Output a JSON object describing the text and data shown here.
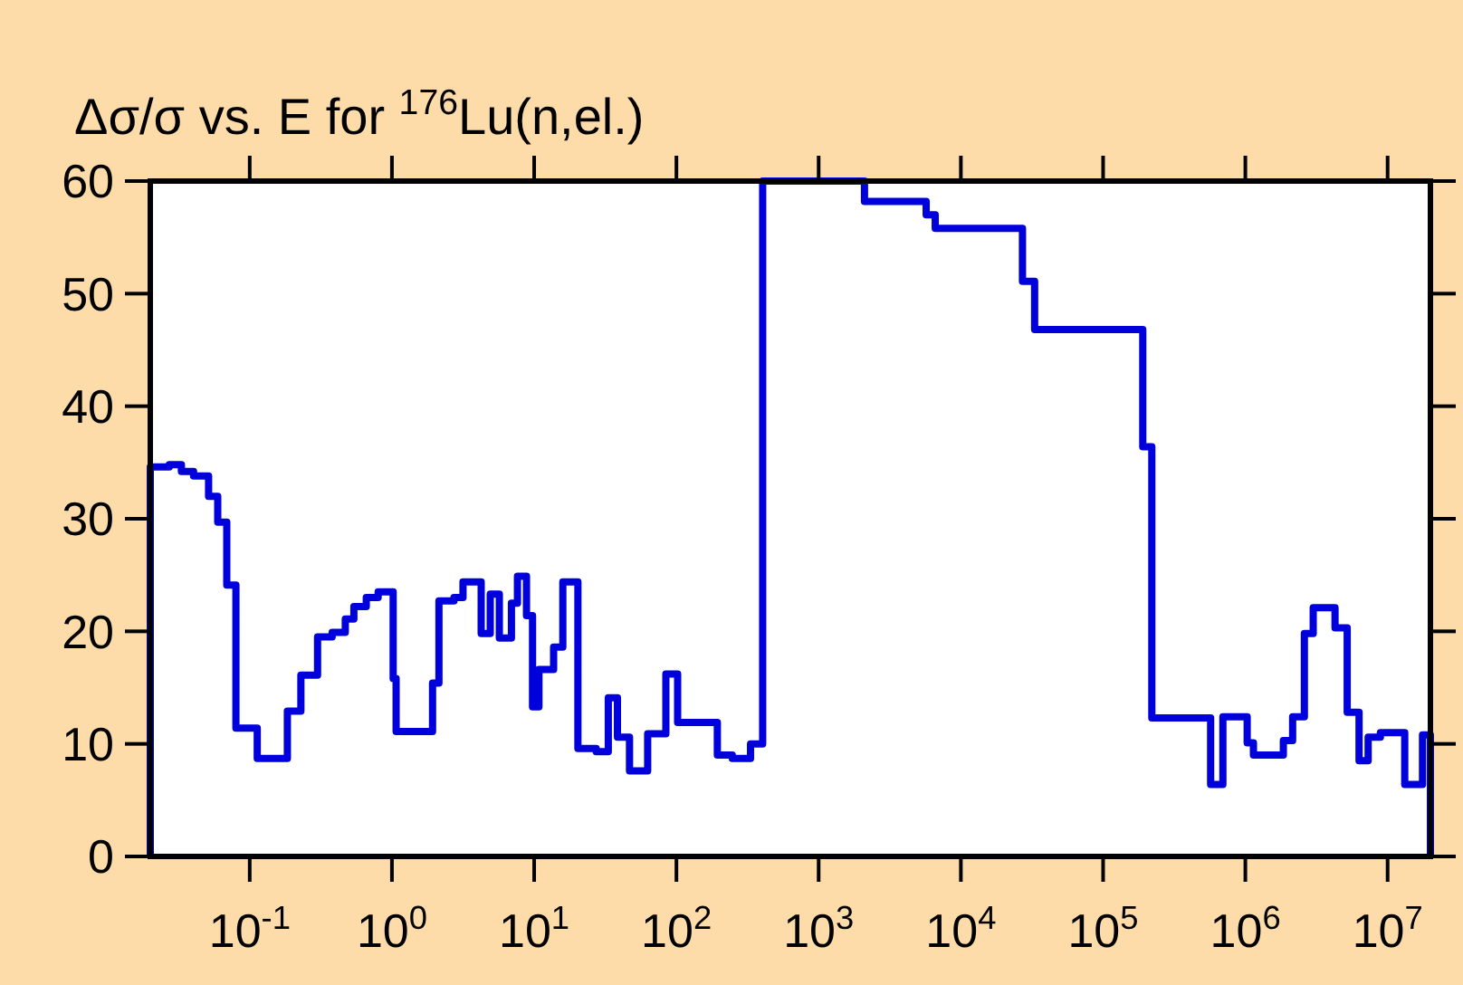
{
  "chart_data": {
    "type": "step",
    "title": "Δσ/σ vs. E for $^{176}$Lu(n,el.)",
    "log": "x",
    "xlim": [
      0.02,
      20000000
    ],
    "ylim": [
      0,
      60
    ],
    "xticks": [
      {
        "value": 0.1,
        "label": "10$^{-1}$"
      },
      {
        "value": 1,
        "label": "10$^{0}$"
      },
      {
        "value": 10,
        "label": "10$^{1}$"
      },
      {
        "value": 100,
        "label": "10$^{2}$"
      },
      {
        "value": 1000,
        "label": "10$^{3}$"
      },
      {
        "value": 10000,
        "label": "10$^{4}$"
      },
      {
        "value": 100000,
        "label": "10$^{5}$"
      },
      {
        "value": 1000000,
        "label": "10$^{6}$"
      },
      {
        "value": 10000000,
        "label": "10$^{7}$"
      }
    ],
    "yticks": [
      0,
      10,
      20,
      30,
      40,
      50,
      60
    ],
    "grid": false,
    "marker": "none",
    "line_style": "solid",
    "series": [
      {
        "color": "#0000dd",
        "x": [
          0.02,
          0.02,
          0.0272,
          0.0331,
          0.0403,
          0.0514,
          0.0596,
          0.069,
          0.08,
          0.113,
          0.184,
          0.229,
          0.3,
          0.38,
          0.47,
          0.54,
          0.66,
          0.8,
          1.02,
          1.07,
          1.93,
          2.14,
          2.73,
          3.16,
          4.24,
          4.91,
          5.69,
          6.92,
          7.63,
          8.83,
          9.74,
          10.8,
          13.7,
          15.9,
          20.3,
          27.3,
          33.2,
          38.5,
          46.8,
          62.8,
          84.3,
          102,
          194,
          247,
          332,
          404,
          2100,
          5700,
          6600,
          27100,
          33000,
          190000,
          220000,
          570000,
          695000,
          1030000,
          1140000,
          1850000,
          2150000,
          2600000,
          3000000,
          4270000,
          5200000,
          6300000,
          7300000,
          8900000,
          13200000,
          17600000,
          20000000
        ],
        "values": [
          0,
          34.6,
          34.8,
          34.2,
          33.8,
          32,
          29.7,
          24.1,
          11.4,
          8.7,
          12.9,
          16.1,
          19.5,
          19.9,
          21.1,
          22.2,
          23,
          23.5,
          15.8,
          11.1,
          15.4,
          22.7,
          23,
          24.4,
          19.8,
          23.3,
          19.4,
          22.5,
          24.9,
          21.4,
          13.3,
          16.6,
          18.6,
          24.4,
          9.6,
          9.3,
          14.1,
          10.6,
          7.6,
          10.9,
          16.2,
          11.9,
          9,
          8.7,
          10,
          60,
          58.2,
          57,
          55.8,
          51.1,
          46.8,
          36.4,
          12.3,
          6.4,
          12.4,
          10.1,
          9,
          10.3,
          12.4,
          19.8,
          22.1,
          20.3,
          12.8,
          8.5,
          10.6,
          11,
          6.4,
          10.8,
          0
        ]
      }
    ]
  }
}
